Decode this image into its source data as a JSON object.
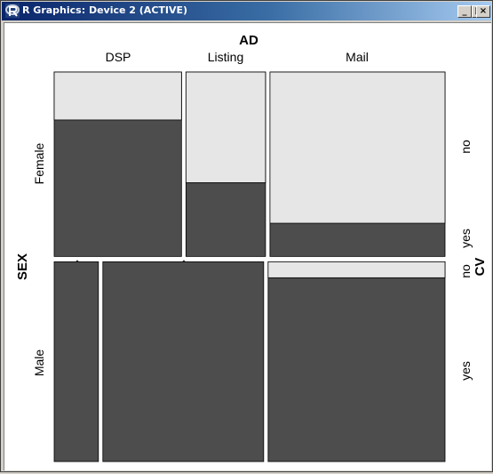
{
  "window": {
    "title": "R Graphics: Device 2 (ACTIVE)",
    "icon": "r-logo-icon",
    "controls": [
      "minimize-icon",
      "maximize-icon",
      "close-icon"
    ]
  },
  "colors": {
    "titlebar_start": "#0a246a",
    "titlebar_end": "#a6caf0",
    "yes_fill": "#4d4d4d",
    "no_fill": "#e6e6e6"
  },
  "chart_data": {
    "type": "mosaic",
    "x_variable": "AD",
    "y_variable": "SEX",
    "fill_variable": "CV",
    "ad_levels": [
      "DSP",
      "Listing",
      "Mail"
    ],
    "sex_levels": [
      "Female",
      "Male"
    ],
    "cv_levels": [
      "no",
      "yes"
    ],
    "cells": [
      {
        "ad": "DSP",
        "sex": "Female",
        "no": 0.26,
        "yes": 0.74
      },
      {
        "ad": "Listing",
        "sex": "Female",
        "no": 0.6,
        "yes": 0.4
      },
      {
        "ad": "Mail",
        "sex": "Female",
        "no": 0.82,
        "yes": 0.18
      },
      {
        "ad": "DSP",
        "sex": "Male",
        "no": 0.0,
        "yes": 1.0
      },
      {
        "ad": "Listing",
        "sex": "Male",
        "no": 0.0,
        "yes": 1.0
      },
      {
        "ad": "Mail",
        "sex": "Male",
        "no": 0.08,
        "yes": 0.92
      }
    ],
    "column_widths": {
      "Female": [
        0.32,
        0.2,
        0.44
      ],
      "Male": [
        0.11,
        0.4,
        0.44
      ]
    },
    "row_heights": [
      0.48,
      0.52
    ]
  }
}
